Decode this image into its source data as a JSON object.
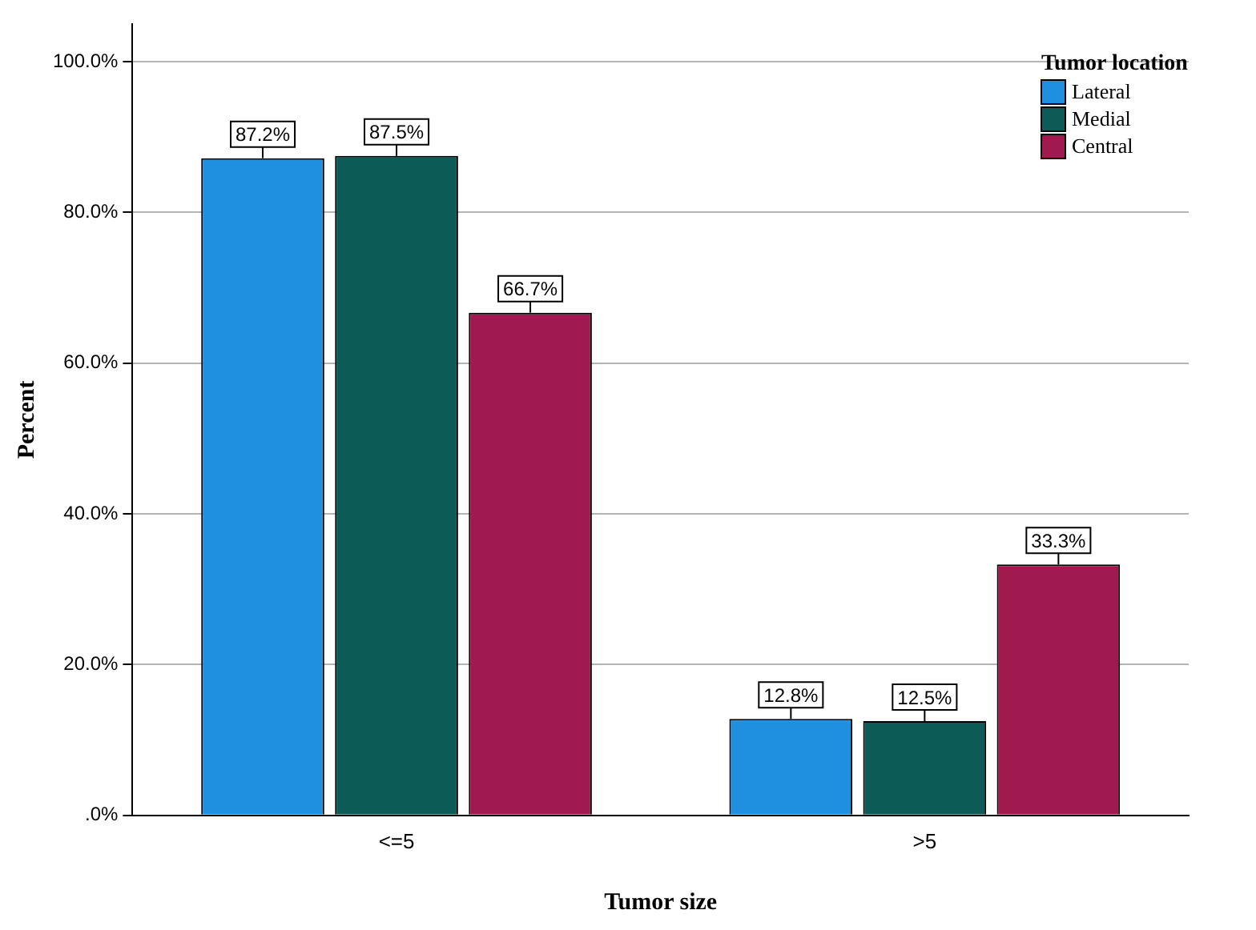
{
  "chart_data": {
    "type": "bar",
    "xlabel": "Tumor size",
    "ylabel": "Percent",
    "legend_title": "Tumor location",
    "categories": [
      "<=5",
      ">5"
    ],
    "series": [
      {
        "name": "Lateral",
        "color": "#1f8fe0",
        "values": [
          87.2,
          12.8
        ],
        "value_labels": [
          "87.2%",
          "12.8%"
        ]
      },
      {
        "name": "Medial",
        "color": "#0c5b57",
        "values": [
          87.5,
          12.5
        ],
        "value_labels": [
          "87.5%",
          "12.5%"
        ]
      },
      {
        "name": "Central",
        "color": "#a0194f",
        "values": [
          66.7,
          33.3
        ],
        "value_labels": [
          "66.7%",
          "33.3%"
        ]
      }
    ],
    "ylim": [
      0,
      105
    ],
    "yticks": [
      {
        "value": 0,
        "label": ".0%"
      },
      {
        "value": 20,
        "label": "20.0%"
      },
      {
        "value": 40,
        "label": "40.0%"
      },
      {
        "value": 60,
        "label": "60.0%"
      },
      {
        "value": 80,
        "label": "80.0%"
      },
      {
        "value": 100,
        "label": "100.0%"
      }
    ],
    "grid": "y",
    "legend": "top right"
  }
}
